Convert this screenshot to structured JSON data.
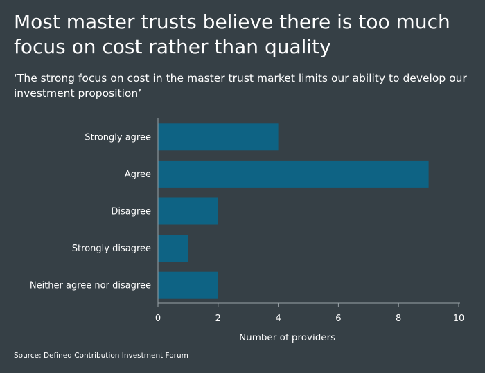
{
  "title": "Most master trusts believe there is too much focus on cost rather than quality",
  "subtitle": "‘The strong focus on cost in the master trust market limits our ability to develop our investment proposition’",
  "source": "Source: Defined Contribution Investment Forum",
  "colors": {
    "background": "#364046",
    "bar": "#0e6384",
    "axis": "#9aa3a8",
    "text": "#ffffff"
  },
  "chart_data": {
    "type": "bar",
    "orientation": "horizontal",
    "categories": [
      "Strongly agree",
      "Agree",
      "Disagree",
      "Strongly disagree",
      "Neither agree nor disagree"
    ],
    "values": [
      4,
      9,
      2,
      1,
      2
    ],
    "xlabel": "Number of providers",
    "ylabel": "",
    "xlim": [
      0,
      10
    ],
    "xticks": [
      "0",
      "2",
      "4",
      "6",
      "8",
      "10"
    ],
    "grid": false
  }
}
